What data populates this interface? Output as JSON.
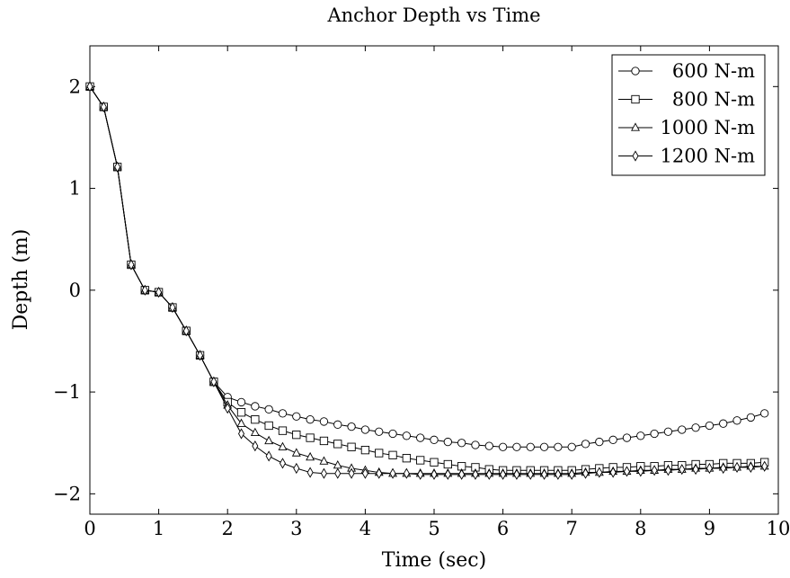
{
  "chart_data": {
    "type": "line",
    "title": "Anchor Depth vs Time",
    "xlabel": "Time (sec)",
    "ylabel": "Depth (m)",
    "xlim": [
      0,
      10
    ],
    "ylim": [
      -2.2,
      2.4
    ],
    "x_ticks": [
      0,
      1,
      2,
      3,
      4,
      5,
      6,
      7,
      8,
      9,
      10
    ],
    "y_ticks": [
      -2,
      -1,
      0,
      1,
      2
    ],
    "y_tick_labels": [
      "−2",
      "−1",
      "0",
      "1",
      "2"
    ],
    "grid": false,
    "legend_position": "top-right",
    "x": [
      0.0,
      0.2,
      0.4,
      0.6,
      0.8,
      1.0,
      1.2,
      1.4,
      1.6,
      1.8,
      2.0,
      2.2,
      2.4,
      2.6,
      2.8,
      3.0,
      3.2,
      3.4,
      3.6,
      3.8,
      4.0,
      4.2,
      4.4,
      4.6,
      4.8,
      5.0,
      5.2,
      5.4,
      5.6,
      5.8,
      6.0,
      6.2,
      6.4,
      6.6,
      6.8,
      7.0,
      7.2,
      7.4,
      7.6,
      7.8,
      8.0,
      8.2,
      8.4,
      8.6,
      8.8,
      9.0,
      9.2,
      9.4,
      9.6,
      9.8
    ],
    "series": [
      {
        "name": "600 N-m",
        "marker": "circle",
        "values": [
          2.0,
          1.8,
          1.21,
          0.25,
          0.0,
          -0.02,
          -0.17,
          -0.4,
          -0.64,
          -0.9,
          -1.05,
          -1.1,
          -1.14,
          -1.17,
          -1.21,
          -1.24,
          -1.27,
          -1.29,
          -1.32,
          -1.34,
          -1.37,
          -1.39,
          -1.41,
          -1.43,
          -1.45,
          -1.47,
          -1.49,
          -1.5,
          -1.52,
          -1.53,
          -1.54,
          -1.54,
          -1.54,
          -1.54,
          -1.54,
          -1.54,
          -1.51,
          -1.49,
          -1.47,
          -1.45,
          -1.43,
          -1.41,
          -1.39,
          -1.37,
          -1.35,
          -1.33,
          -1.31,
          -1.28,
          -1.25,
          -1.21
        ]
      },
      {
        "name": "800 N-m",
        "marker": "square",
        "values": [
          2.0,
          1.8,
          1.21,
          0.25,
          0.0,
          -0.02,
          -0.17,
          -0.4,
          -0.64,
          -0.9,
          -1.1,
          -1.2,
          -1.27,
          -1.33,
          -1.38,
          -1.42,
          -1.45,
          -1.48,
          -1.51,
          -1.54,
          -1.57,
          -1.6,
          -1.62,
          -1.65,
          -1.67,
          -1.69,
          -1.71,
          -1.73,
          -1.74,
          -1.76,
          -1.77,
          -1.77,
          -1.77,
          -1.77,
          -1.77,
          -1.77,
          -1.76,
          -1.75,
          -1.74,
          -1.74,
          -1.73,
          -1.73,
          -1.72,
          -1.72,
          -1.71,
          -1.71,
          -1.7,
          -1.7,
          -1.7,
          -1.69
        ]
      },
      {
        "name": "1000 N-m",
        "marker": "triangle",
        "values": [
          2.0,
          1.8,
          1.21,
          0.25,
          0.0,
          -0.02,
          -0.17,
          -0.4,
          -0.64,
          -0.9,
          -1.13,
          -1.31,
          -1.4,
          -1.48,
          -1.54,
          -1.6,
          -1.64,
          -1.68,
          -1.72,
          -1.75,
          -1.77,
          -1.79,
          -1.8,
          -1.8,
          -1.8,
          -1.8,
          -1.8,
          -1.8,
          -1.8,
          -1.8,
          -1.8,
          -1.8,
          -1.8,
          -1.8,
          -1.8,
          -1.8,
          -1.79,
          -1.79,
          -1.78,
          -1.78,
          -1.77,
          -1.77,
          -1.76,
          -1.76,
          -1.75,
          -1.75,
          -1.74,
          -1.74,
          -1.73,
          -1.73
        ]
      },
      {
        "name": "1200 N-m",
        "marker": "diamond",
        "values": [
          2.0,
          1.8,
          1.21,
          0.25,
          0.0,
          -0.02,
          -0.17,
          -0.4,
          -0.64,
          -0.9,
          -1.16,
          -1.41,
          -1.53,
          -1.63,
          -1.7,
          -1.75,
          -1.79,
          -1.8,
          -1.8,
          -1.8,
          -1.8,
          -1.8,
          -1.8,
          -1.8,
          -1.81,
          -1.81,
          -1.81,
          -1.81,
          -1.81,
          -1.81,
          -1.81,
          -1.81,
          -1.81,
          -1.81,
          -1.81,
          -1.81,
          -1.8,
          -1.79,
          -1.79,
          -1.78,
          -1.78,
          -1.77,
          -1.77,
          -1.76,
          -1.76,
          -1.75,
          -1.75,
          -1.74,
          -1.74,
          -1.73
        ]
      }
    ]
  }
}
